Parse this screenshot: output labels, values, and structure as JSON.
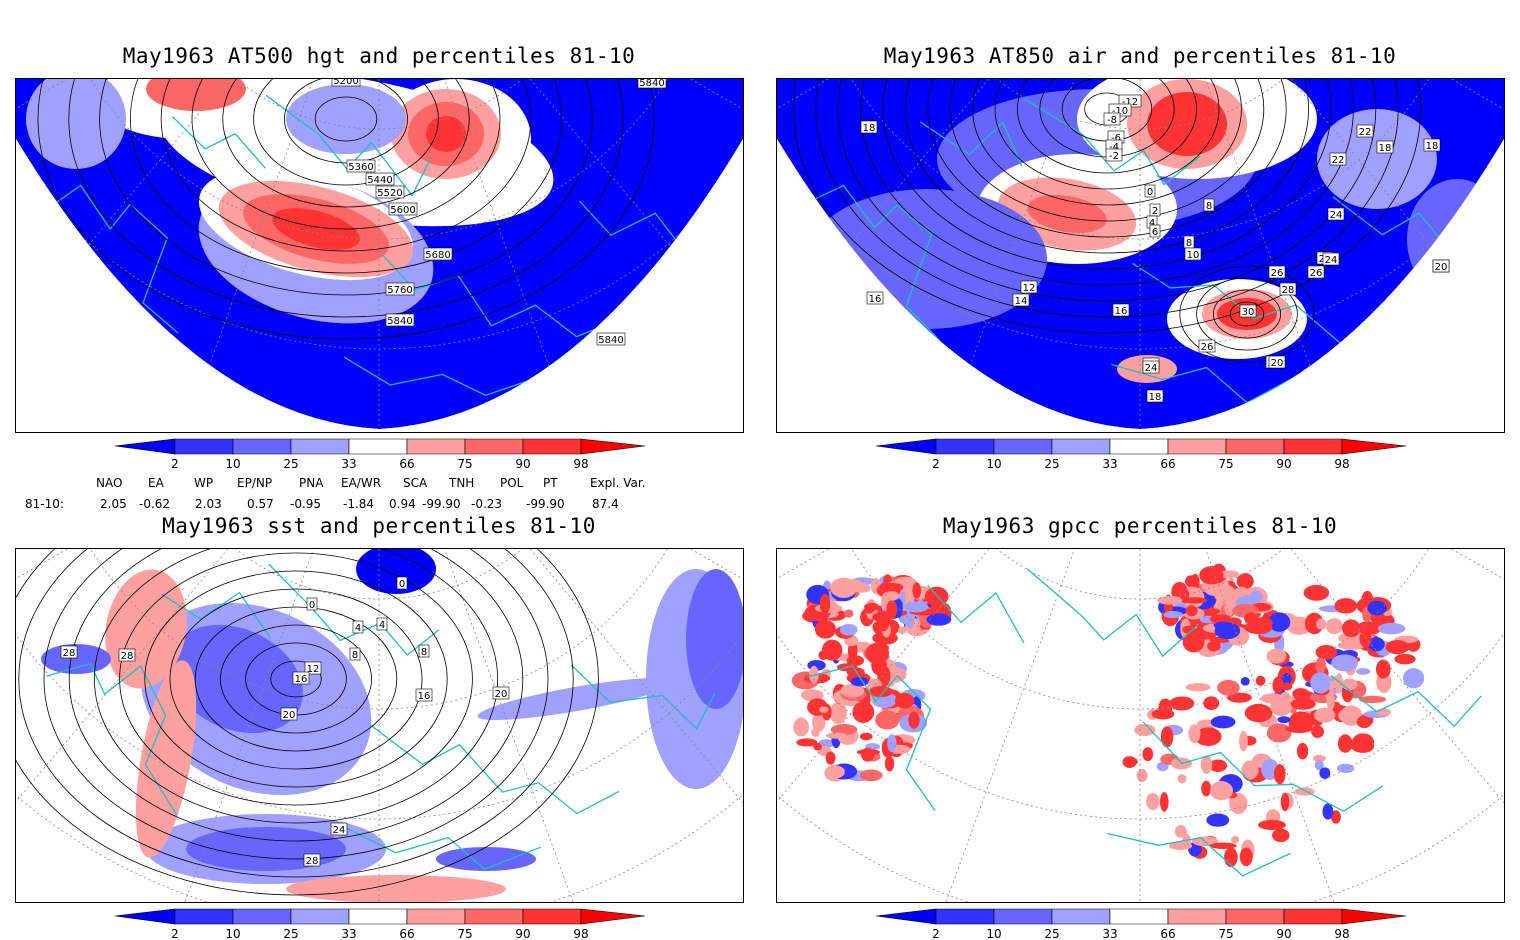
{
  "panels": [
    {
      "id": "p1",
      "title": "May1963 AT500 hgt and percentiles 81-10",
      "contour_labels": [
        "5200",
        "5360",
        "5440",
        "5520",
        "5600",
        "5680",
        "5760",
        "5840",
        "5840",
        "5840"
      ]
    },
    {
      "id": "p2",
      "title": "May1963 AT850 air and percentiles 81-10",
      "contour_labels": [
        "-12",
        "-10",
        "-8",
        "-6",
        "-4",
        "-2",
        "0",
        "2",
        "4",
        "6",
        "8",
        "8",
        "10",
        "12",
        "14",
        "16",
        "16",
        "16",
        "18",
        "18",
        "18",
        "20",
        "20",
        "22",
        "22",
        "22",
        "24",
        "24",
        "24",
        "26",
        "26",
        "26",
        "28",
        "30",
        "18",
        "20",
        "24"
      ]
    },
    {
      "id": "p3",
      "title": "May1963 sst and percentiles 81-10",
      "contour_labels": [
        "0",
        "0",
        "4",
        "4",
        "8",
        "8",
        "12",
        "16",
        "16",
        "20",
        "20",
        "24",
        "28",
        "28",
        "28"
      ]
    },
    {
      "id": "p4",
      "title": "May1963 gpcc percentiles 81-10",
      "contour_labels": []
    }
  ],
  "colorbar": {
    "ticks": [
      "2",
      "10",
      "25",
      "33",
      "66",
      "75",
      "90",
      "98"
    ],
    "colors": {
      "deep_blue": "#0000ff",
      "blue": "#3333ff",
      "mid_blue": "#6666ff",
      "light_blue": "#a0a0ff",
      "light_red": "#ffa0a0",
      "mid_red": "#ff6666",
      "red": "#ff3333",
      "deep_red": "#ff0000"
    }
  },
  "indices": {
    "headers": [
      "NAO",
      "EA",
      "WP",
      "EP/NP",
      "PNA",
      "EA/WR",
      "SCA",
      "TNH",
      "POL",
      "PT",
      "Expl. Var."
    ],
    "row_label": "81-10:",
    "values": [
      "2.05",
      "-0.62",
      "2.03",
      "0.57",
      "-0.95",
      "-1.84",
      "0.94",
      "-99.90",
      "-0.23",
      "-99.90",
      "87.4"
    ]
  },
  "coast_color": "#1fbfbf"
}
